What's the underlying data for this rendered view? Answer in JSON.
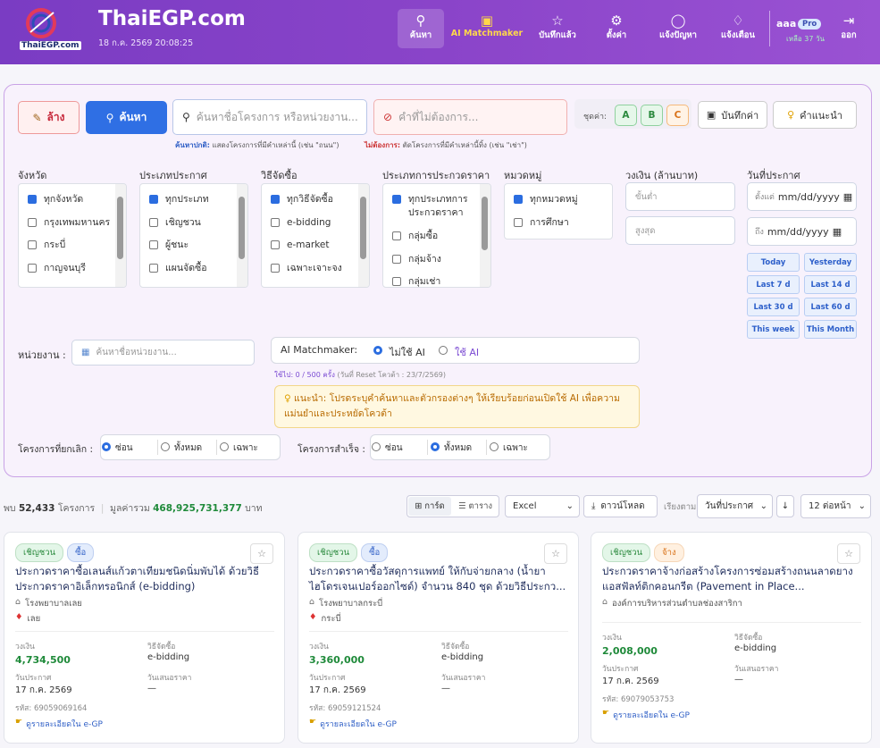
{
  "header": {
    "logo_text": "ThaiEGP.com",
    "title": "ThaiEGP.com",
    "datetime": "18 ก.ค. 2569 20:08:25",
    "nav": [
      "ค้นหา",
      "AI Matchmaker",
      "บันทึกแล้ว",
      "ตั้งค่า",
      "แจ้งปัญหา",
      "แจ้งเตือน"
    ],
    "user": {
      "name": "aaa",
      "plan": "Pro",
      "remaining": "เหลือ 37 วัน"
    },
    "logout": "ออก"
  },
  "search": {
    "clear": "ล้าง",
    "search": "ค้นหา",
    "query_placeholder": "ค้นหาชื่อโครงการ หรือหน่วยงาน...",
    "exclude_placeholder": "คำที่ไม่ต้องการ...",
    "preset_label": "ชุดค่า:",
    "presets": [
      "A",
      "B",
      "C"
    ],
    "save": "บันทึกค่า",
    "tips": "คำแนะนำ",
    "hint_include_label": "ค้นหาปกติ:",
    "hint_include": "แสดงโครงการที่มีคำเหล่านี้ (เช่น \"ถนน\")",
    "hint_exclude_label": "ไม่ต้องการ:",
    "hint_exclude": "ตัดโครงการที่มีคำเหล่านี้ทิ้ง (เช่น \"เช่า\")"
  },
  "filters": [
    {
      "label": "จังหวัด",
      "options": [
        "ทุกจังหวัด",
        "กรุงเทพมหานคร",
        "กระบี่",
        "กาญจนบุรี"
      ]
    },
    {
      "label": "ประเภทประกาศ",
      "options": [
        "ทุกประเภท",
        "เชิญชวน",
        "ผู้ชนะ",
        "แผนจัดซื้อ"
      ]
    },
    {
      "label": "วิธีจัดซื้อ",
      "options": [
        "ทุกวิธีจัดซื้อ",
        "e-bidding",
        "e-market",
        "เฉพาะเจาะจง"
      ]
    },
    {
      "label": "ประเภทการประกวดราคา",
      "options": [
        "ทุกประเภทการประกวดราคา",
        "กลุ่มซื้อ",
        "กลุ่มจ้าง",
        "กลุ่มเช่า"
      ]
    },
    {
      "label": "หมวดหมู่",
      "options": [
        "ทุกหมวดหมู่",
        "การศึกษา"
      ]
    }
  ],
  "budget": {
    "label": "วงเงิน (ล้านบาท)",
    "min_placeholder": "ขั้นต่ำ",
    "max_placeholder": "สูงสุด"
  },
  "date": {
    "label": "วันที่ประกาศ",
    "from": "ตั้งแต่",
    "to": "ถึง",
    "placeholder": "mm/dd/yyyy",
    "quick": [
      "Today",
      "Yesterday",
      "Last 7 d",
      "Last 14 d",
      "Last 30 d",
      "Last 60 d",
      "This week",
      "This Month"
    ]
  },
  "agency": {
    "label": "หน่วยงาน :",
    "placeholder": "ค้นหาชื่อหน่วยงาน..."
  },
  "ai": {
    "label": "AI Matchmaker:",
    "options": [
      "ไม่ใช้ AI",
      "ใช้ AI"
    ],
    "selected": 0,
    "usage": "ใช้ไป: 0 / 500 ครั้ง",
    "reset": "(วันที่ Reset โควต้า : 23/7/2569)",
    "tip": "แนะนำ: โปรดระบุคำค้นหาและตัวกรองต่างๆ ให้เรียบร้อยก่อนเปิดใช้ AI เพื่อความแม่นยำและประหยัดโควต้า"
  },
  "cancelled": {
    "label": "โครงการที่ยกเลิก :",
    "options": [
      "ซ่อน",
      "ทั้งหมด",
      "เฉพาะ"
    ],
    "selected": 0
  },
  "completed": {
    "label": "โครงการสำเร็จ :",
    "options": [
      "ซ่อน",
      "ทั้งหมด",
      "เฉพาะ"
    ],
    "selected": 1
  },
  "summary": {
    "found_label": "พบ",
    "count": "52,433",
    "count_unit": "โครงการ",
    "total_label": "มูลค่ารวม",
    "total": "468,925,731,377",
    "total_unit": "บาท"
  },
  "toolbar": {
    "views": [
      "การ์ด",
      "ตาราง"
    ],
    "export": "Excel",
    "download": "ดาวน์โหลด",
    "sort_label": "เรียงตาม",
    "sort": "วันที่ประกาศ",
    "per_page": "12 ต่อหน้า"
  },
  "card_fields": {
    "budget": "วงเงิน",
    "method": "วิธีจัดซื้อ",
    "announce": "วันประกาศ",
    "bid": "วันเสนอราคา",
    "id": "รหัส:",
    "link": "ดูรายละเอียดใน e-GP"
  },
  "cards": [
    {
      "tags": [
        "เชิญชวน",
        "ซื้อ"
      ],
      "title": "ประกวดราคาซื้อเลนส์แก้วตาเทียมชนิดนิ่มพับได้ ด้วยวิธีประกวดราคาอิเล็กทรอนิกส์ (e-bidding)",
      "agency": "โรงพยาบาลเลย",
      "province": "เลย",
      "budget": "4,734,500",
      "method": "e-bidding",
      "announce": "17 ก.ค. 2569",
      "bid": "—",
      "id": "69059069164"
    },
    {
      "tags": [
        "เชิญชวน",
        "ซื้อ"
      ],
      "title": "ประกวดราคาซื้อวัสดุการแพทย์ ให้กับจ่ายกลาง (น้ำยาไฮโดรเจนเปอร์ออกไซด์) จำนวน 840 ชุด ด้วยวิธีประกว...",
      "agency": "โรงพยาบาลกระบี่",
      "province": "กระบี่",
      "budget": "3,360,000",
      "method": "e-bidding",
      "announce": "17 ก.ค. 2569",
      "bid": "—",
      "id": "69059121524"
    },
    {
      "tags": [
        "เชิญชวน",
        "จ้าง"
      ],
      "title": "ประกวดราคาจ้างก่อสร้างโครงการซ่อมสร้างถนนลาดยางแอสฟัลท์ติกคอนกรีต (Pavement in Place...",
      "agency": "องค์การบริหารส่วนตำบลช่องสาริกา",
      "budget": "2,008,000",
      "method": "e-bidding",
      "announce": "17 ก.ค. 2569",
      "bid": "—",
      "id": "69079053753"
    }
  ]
}
